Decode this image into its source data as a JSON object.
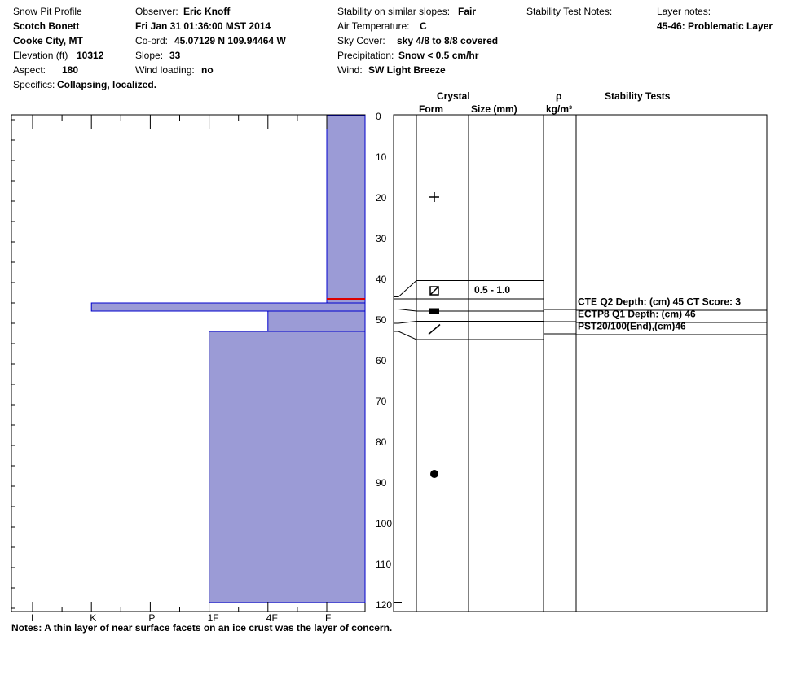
{
  "header": {
    "title": "Snow Pit Profile",
    "location": "Scotch Bonett",
    "region": "Cooke City, MT",
    "elevation_label": "Elevation (ft)",
    "elevation": "10312",
    "aspect_label": "Aspect:",
    "aspect": "180",
    "specifics_label": "Specifics:",
    "specifics": "Collapsing, localized.",
    "observer_label": "Observer:",
    "observer": "Eric Knoff",
    "datetime": "Fri Jan 31 01:36:00 MST 2014",
    "coord_label": "Co-ord:",
    "coord": "45.07129 N 109.94464 W",
    "slope_label": "Slope:",
    "slope": "33",
    "wind_loading_label": "Wind loading:",
    "wind_loading": "no",
    "stability_label": "Stability on similar slopes:",
    "stability": "Fair",
    "air_temp_label": "Air Temperature:",
    "air_temp": "C",
    "sky_label": "Sky Cover:",
    "sky": "sky 4/8 to 8/8 covered",
    "precip_label": "Precipitation:",
    "precip": "Snow < 0.5 cm/hr",
    "wind_label": "Wind:",
    "wind": "SW Light Breeze",
    "stability_notes_label": "Stability Test Notes:",
    "layer_notes_label": "Layer notes:",
    "layer_note": "45-46: Problematic Layer"
  },
  "columns": {
    "crystal": "Crystal",
    "form": "Form",
    "size": "Size (mm)",
    "rho": "ρ",
    "rho_units": "kg/m³",
    "stability_tests": "Stability Tests"
  },
  "notes": "Notes:  A thin layer of near surface facets on an ice crust was the layer of concern.",
  "colors": {
    "hardness_fill": "#9b9bd6",
    "hardness_edge": "#0000cc",
    "weak_layer": "#dd0000"
  },
  "chart_data": {
    "type": "bar",
    "title": "",
    "y_axis": {
      "label": "",
      "range": [
        0,
        122
      ],
      "ticks": [
        0,
        10,
        20,
        30,
        40,
        50,
        60,
        70,
        80,
        90,
        100,
        110,
        120
      ],
      "inverted": true
    },
    "x_axis": {
      "label": "",
      "ticks": [
        "I",
        "K",
        "P",
        "1F",
        "4F",
        "F"
      ],
      "hardness_index": [
        0,
        1,
        2,
        3,
        4,
        5
      ]
    },
    "hardness_layers": [
      {
        "top": 0,
        "bottom": 46,
        "hardness": "F",
        "hardness_index": 5.0
      },
      {
        "top": 46,
        "bottom": 48,
        "hardness": "K",
        "hardness_index": 1.0
      },
      {
        "top": 48,
        "bottom": 53,
        "hardness": "4F",
        "hardness_index": 4.0
      },
      {
        "top": 53,
        "bottom": 120,
        "hardness": "1F",
        "hardness_index": 3.0
      }
    ],
    "weak_layer_depth": 45,
    "crystal_boundaries": [
      40.5,
      45,
      48,
      50.5,
      55
    ],
    "crystal_forms": [
      {
        "depth": 20,
        "form": "precipitation-particles-icon"
      },
      {
        "depth": 43,
        "form": "faceted-rounded-icon",
        "size": "0.5 - 1.0"
      },
      {
        "depth": 48,
        "form": "ice-crust-icon"
      },
      {
        "depth": 52.5,
        "form": "surface-hoar-slash-icon"
      },
      {
        "depth": 88,
        "form": "rounded-grains-icon"
      }
    ],
    "stability_tests": [
      {
        "text": "CTE Q2 Depth: (cm) 45 CT Score: 3"
      },
      {
        "text": "ECTP8 Q1 Depth: (cm) 46"
      },
      {
        "text": "PST20/100(End),(cm)46"
      }
    ]
  }
}
